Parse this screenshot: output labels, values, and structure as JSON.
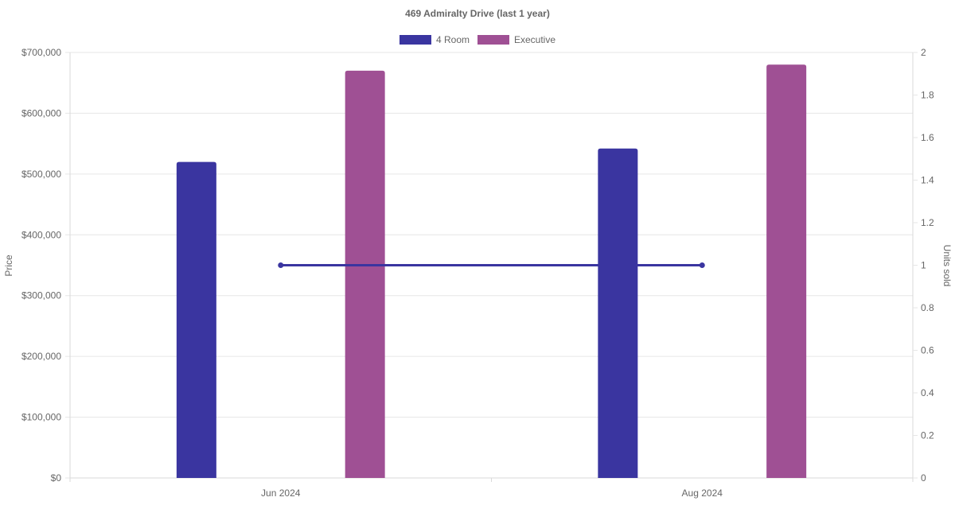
{
  "chart_data": {
    "type": "bar",
    "title": "469 Admiralty Drive (last 1 year)",
    "categories": [
      "Jun 2024",
      "Aug 2024"
    ],
    "series": [
      {
        "name": "4 Room",
        "type": "bar",
        "axis": "left",
        "color": "#3a35a0",
        "values": [
          520000,
          542000
        ]
      },
      {
        "name": "Executive",
        "type": "bar",
        "axis": "left",
        "color": "#9f5094",
        "values": [
          670000,
          680000
        ]
      },
      {
        "type": "line",
        "axis": "right",
        "color": "#3a35a0",
        "values": [
          1,
          1
        ]
      }
    ],
    "y_left": {
      "label": "Price",
      "range": [
        0,
        700000
      ],
      "ticks": [
        0,
        100000,
        200000,
        300000,
        400000,
        500000,
        600000,
        700000
      ],
      "tick_labels": [
        "$0",
        "$100,000",
        "$200,000",
        "$300,000",
        "$400,000",
        "$500,000",
        "$600,000",
        "$700,000"
      ]
    },
    "y_right": {
      "label": "Units sold",
      "range": [
        0,
        2
      ],
      "ticks": [
        0,
        0.2,
        0.4,
        0.6,
        0.8,
        1,
        1.2,
        1.4,
        1.6,
        1.8,
        2
      ],
      "tick_labels": [
        "0",
        "0.2",
        "0.4",
        "0.6",
        "0.8",
        "1",
        "1.2",
        "1.4",
        "1.6",
        "1.8",
        "2"
      ]
    },
    "grid": true,
    "legend_position": "top-center"
  }
}
